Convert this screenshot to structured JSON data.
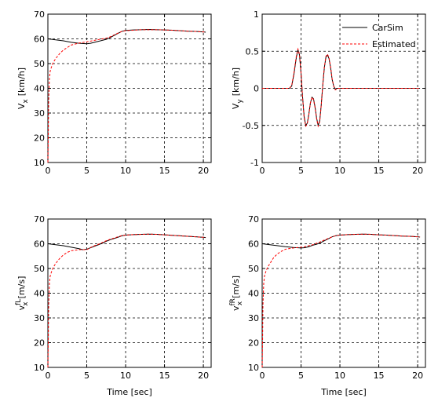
{
  "chart_data": [
    {
      "type": "line",
      "panel": "top-left",
      "ylabel": {
        "base": "V",
        "sub": "x",
        "sup": "",
        "unit": "[km/h]"
      },
      "xlabel": "",
      "xlim": [
        0,
        21
      ],
      "ylim": [
        10,
        70
      ],
      "xticks": [
        0,
        5,
        10,
        15,
        20
      ],
      "yticks": [
        10,
        20,
        30,
        40,
        50,
        60,
        70
      ],
      "grid": true,
      "legend": null,
      "series": [
        {
          "name": "CarSim",
          "color": "#000000",
          "dash": "",
          "x": [
            0,
            1,
            2,
            3,
            4,
            5,
            5.5,
            6,
            6.5,
            7,
            7.5,
            8,
            9,
            9.5,
            10,
            11,
            12,
            13,
            14,
            15,
            16,
            17,
            18,
            19,
            20,
            20.3
          ],
          "y": [
            60,
            59.6,
            59.2,
            58.6,
            58.2,
            58,
            58.2,
            58.6,
            59,
            59.4,
            59.8,
            60.5,
            62.2,
            63,
            63.4,
            63.6,
            63.7,
            63.8,
            63.7,
            63.6,
            63.5,
            63.3,
            63.1,
            63,
            62.8,
            62.7
          ]
        },
        {
          "name": "Estimated",
          "color": "#ff0000",
          "dash": "3 2",
          "x": [
            0,
            0.05,
            0.1,
            0.2,
            0.3,
            0.5,
            0.7,
            1,
            1.5,
            2,
            2.5,
            3,
            4,
            5,
            5.5,
            6,
            6.5,
            7,
            7.5,
            8,
            9,
            9.5,
            10,
            11,
            12,
            13,
            14,
            15,
            16,
            17,
            18,
            19,
            20,
            20.3
          ],
          "y": [
            10,
            20,
            35,
            44,
            47,
            49,
            50.5,
            52,
            54,
            55.5,
            56.5,
            57.5,
            58.3,
            58.8,
            59.1,
            59.4,
            59.7,
            60,
            60.3,
            60.8,
            62.3,
            63,
            63.3,
            63.5,
            63.7,
            63.7,
            63.7,
            63.6,
            63.5,
            63.3,
            63.1,
            63,
            62.8,
            62.7
          ]
        }
      ]
    },
    {
      "type": "line",
      "panel": "top-right",
      "ylabel": {
        "base": "V",
        "sub": "y",
        "sup": "",
        "unit": "[km/h]"
      },
      "xlabel": "",
      "xlim": [
        0,
        21
      ],
      "ylim": [
        -1,
        1
      ],
      "xticks": [
        0,
        5,
        10,
        15,
        20
      ],
      "yticks": [
        -1,
        -0.5,
        0,
        0.5,
        1
      ],
      "grid": true,
      "legend": "top-right",
      "series": [
        {
          "name": "CarSim",
          "color": "#000000",
          "dash": "",
          "x": [
            0,
            3.5,
            3.8,
            4.1,
            4.4,
            4.6,
            4.8,
            5.0,
            5.2,
            5.4,
            5.6,
            5.8,
            6.0,
            6.2,
            6.4,
            6.6,
            6.8,
            7.0,
            7.2,
            7.4,
            7.6,
            7.8,
            8.0,
            8.2,
            8.4,
            8.6,
            8.8,
            9.0,
            9.2,
            9.4,
            9.6,
            9.8,
            10.0,
            10.2,
            10.6,
            15,
            20,
            20.3
          ],
          "y": [
            0,
            0,
            0.03,
            0.2,
            0.42,
            0.52,
            0.45,
            0.2,
            -0.12,
            -0.38,
            -0.5,
            -0.47,
            -0.35,
            -0.2,
            -0.12,
            -0.14,
            -0.25,
            -0.4,
            -0.5,
            -0.44,
            -0.22,
            0.05,
            0.28,
            0.42,
            0.45,
            0.4,
            0.28,
            0.12,
            0.03,
            -0.01,
            0,
            0,
            0,
            0,
            0,
            0,
            0,
            0
          ]
        },
        {
          "name": "Estimated",
          "color": "#ff0000",
          "dash": "3 2",
          "x": [
            0,
            3.5,
            3.8,
            4.1,
            4.4,
            4.6,
            4.8,
            5.0,
            5.2,
            5.4,
            5.6,
            5.8,
            6.0,
            6.2,
            6.4,
            6.6,
            6.8,
            7.0,
            7.2,
            7.4,
            7.6,
            7.8,
            8.0,
            8.2,
            8.4,
            8.6,
            8.8,
            9.0,
            9.2,
            9.4,
            9.6,
            9.8,
            10.0,
            10.2,
            10.6,
            15,
            20,
            20.3
          ],
          "y": [
            0,
            0,
            0.04,
            0.22,
            0.44,
            0.53,
            0.46,
            0.21,
            -0.13,
            -0.4,
            -0.51,
            -0.48,
            -0.36,
            -0.2,
            -0.12,
            -0.15,
            -0.26,
            -0.41,
            -0.51,
            -0.45,
            -0.23,
            0.05,
            0.29,
            0.43,
            0.46,
            0.41,
            0.29,
            0.13,
            0.03,
            -0.02,
            -0.01,
            0,
            0,
            0,
            0,
            0,
            0,
            0
          ]
        }
      ]
    },
    {
      "type": "line",
      "panel": "bottom-left",
      "ylabel": {
        "base": "v",
        "sub": "x",
        "sup": "fL",
        "unit": "[m/s]"
      },
      "xlabel": "Time [sec]",
      "xlim": [
        0,
        21
      ],
      "ylim": [
        10,
        70
      ],
      "xticks": [
        0,
        5,
        10,
        15,
        20
      ],
      "yticks": [
        10,
        20,
        30,
        40,
        50,
        60,
        70
      ],
      "grid": true,
      "legend": null,
      "series": [
        {
          "name": "CarSim",
          "color": "#000000",
          "dash": "",
          "x": [
            0,
            1,
            2,
            3,
            4,
            4.5,
            5,
            5.5,
            6,
            6.5,
            7,
            7.5,
            8,
            9,
            9.5,
            10,
            11,
            12,
            13,
            14,
            15,
            16,
            17,
            18,
            19,
            20,
            20.3
          ],
          "y": [
            60,
            59.6,
            59.2,
            58.6,
            58,
            57.6,
            57.8,
            58.4,
            59,
            59.6,
            60.2,
            61,
            61.6,
            62.6,
            63.2,
            63.5,
            63.7,
            63.8,
            63.9,
            63.8,
            63.6,
            63.4,
            63.2,
            63,
            62.8,
            62.6,
            62.5
          ]
        },
        {
          "name": "Estimated",
          "color": "#ff0000",
          "dash": "3 2",
          "x": [
            0,
            0.05,
            0.1,
            0.2,
            0.3,
            0.5,
            0.7,
            1,
            1.5,
            2,
            2.5,
            3,
            4,
            5,
            5.5,
            6,
            6.5,
            7,
            7.5,
            8,
            9,
            9.5,
            10,
            11,
            12,
            13,
            14,
            15,
            16,
            17,
            18,
            19,
            20,
            20.3
          ],
          "y": [
            10,
            20,
            35,
            44,
            47,
            49,
            50.5,
            52,
            54,
            55.5,
            56.5,
            57.2,
            57.6,
            57.6,
            58.5,
            59.2,
            59.8,
            60.5,
            61.2,
            61.8,
            62.8,
            63.3,
            63.5,
            63.7,
            63.8,
            63.9,
            63.8,
            63.6,
            63.4,
            63.2,
            63,
            62.8,
            62.6,
            62.5
          ]
        }
      ]
    },
    {
      "type": "line",
      "panel": "bottom-right",
      "ylabel": {
        "base": "v",
        "sub": "x",
        "sup": "fR",
        "unit": "[m/s]"
      },
      "xlabel": "Time [sec]",
      "xlim": [
        0,
        21
      ],
      "ylim": [
        10,
        70
      ],
      "xticks": [
        0,
        5,
        10,
        15,
        20
      ],
      "yticks": [
        10,
        20,
        30,
        40,
        50,
        60,
        70
      ],
      "grid": true,
      "legend": null,
      "series": [
        {
          "name": "CarSim",
          "color": "#000000",
          "dash": "",
          "x": [
            0,
            1,
            2,
            3,
            4,
            5,
            5.5,
            6,
            6.5,
            7,
            7.5,
            8,
            9,
            9.5,
            10,
            11,
            12,
            13,
            14,
            15,
            16,
            17,
            18,
            19,
            20,
            20.3
          ],
          "y": [
            60,
            59.6,
            59.2,
            58.8,
            58.5,
            58.3,
            58.4,
            58.8,
            59.4,
            59.8,
            60.4,
            61.2,
            62.8,
            63.3,
            63.5,
            63.7,
            63.8,
            63.9,
            63.8,
            63.6,
            63.5,
            63.3,
            63.1,
            63,
            62.8,
            62.7
          ]
        },
        {
          "name": "Estimated",
          "color": "#ff0000",
          "dash": "3 2",
          "x": [
            0,
            0.05,
            0.1,
            0.2,
            0.3,
            0.5,
            0.7,
            1,
            1.5,
            2,
            2.5,
            3,
            4,
            5,
            5.5,
            6,
            6.5,
            7,
            7.5,
            8,
            9,
            9.5,
            10,
            11,
            12,
            13,
            14,
            15,
            16,
            17,
            18,
            19,
            20,
            20.3
          ],
          "y": [
            10,
            20,
            35,
            44,
            47,
            49,
            50.5,
            52,
            54.5,
            56,
            57,
            57.8,
            58.3,
            58.6,
            58.8,
            59.2,
            59.6,
            60.2,
            60.8,
            61.5,
            62.8,
            63.3,
            63.5,
            63.7,
            63.8,
            63.9,
            63.8,
            63.6,
            63.5,
            63.3,
            63.1,
            63,
            62.8,
            62.7
          ]
        }
      ]
    }
  ]
}
